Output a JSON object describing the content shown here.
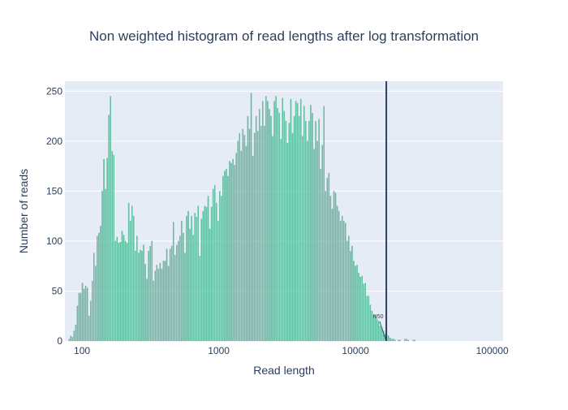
{
  "chart_data": {
    "type": "bar",
    "title": "Non weighted histogram of read lengths after log transformation",
    "xlabel": "Read length",
    "ylabel": "Number of reads",
    "x_scale": "log",
    "xlim": [
      75,
      120000
    ],
    "ylim": [
      0,
      260
    ],
    "x_ticks": [
      {
        "value": 100,
        "label": "100"
      },
      {
        "value": 1000,
        "label": "1000"
      },
      {
        "value": 10000,
        "label": "10000"
      },
      {
        "value": 100000,
        "label": "100000"
      }
    ],
    "y_ticks": [
      {
        "value": 0,
        "label": "0"
      },
      {
        "value": 50,
        "label": "50"
      },
      {
        "value": 100,
        "label": "100"
      },
      {
        "value": 150,
        "label": "150"
      },
      {
        "value": 200,
        "label": "200"
      },
      {
        "value": 250,
        "label": "250"
      }
    ],
    "grid": true,
    "bar_color": "#66c2a5",
    "vline": {
      "x": 16800,
      "color": "#2a3f5f"
    },
    "annotation": {
      "text": "N50",
      "x": 16800,
      "y": 0
    },
    "bins": {
      "log10_start": 1.9,
      "log10_width": 0.0121,
      "counts": [
        2,
        5,
        4,
        10,
        16,
        35,
        48,
        48,
        58,
        52,
        55,
        53,
        25,
        40,
        60,
        88,
        75,
        105,
        108,
        115,
        150,
        182,
        152,
        183,
        226,
        245,
        190,
        186,
        100,
        104,
        98,
        99,
        110,
        106,
        100,
        98,
        138,
        120,
        135,
        125,
        90,
        105,
        88,
        91,
        90,
        96,
        77,
        62,
        90,
        95,
        100,
        60,
        70,
        76,
        72,
        78,
        72,
        80,
        80,
        92,
        75,
        92,
        95,
        119,
        86,
        96,
        100,
        105,
        120,
        108,
        88,
        125,
        130,
        112,
        125,
        106,
        128,
        124,
        135,
        85,
        122,
        130,
        135,
        134,
        145,
        112,
        134,
        152,
        156,
        138,
        120,
        150,
        145,
        165,
        170,
        172,
        165,
        180,
        178,
        182,
        176,
        188,
        200,
        208,
        190,
        212,
        206,
        195,
        225,
        212,
        248,
        185,
        208,
        225,
        210,
        232,
        215,
        240,
        215,
        245,
        240,
        232,
        225,
        205,
        240,
        245,
        233,
        228,
        202,
        243,
        230,
        220,
        198,
        218,
        242,
        208,
        225,
        240,
        238,
        225,
        242,
        205,
        235,
        220,
        200,
        220,
        236,
        228,
        192,
        220,
        200,
        222,
        172,
        196,
        235,
        150,
        163,
        168,
        145,
        132,
        150,
        148,
        135,
        130,
        120,
        125,
        120,
        118,
        100,
        105,
        90,
        95,
        80,
        75,
        76,
        68,
        64,
        65,
        57,
        58,
        45,
        45,
        36,
        30,
        26,
        26,
        22,
        20,
        15,
        13,
        10,
        7,
        6,
        5,
        3,
        2,
        2,
        1,
        0,
        1,
        1,
        0,
        0,
        2,
        2,
        1,
        0,
        0,
        1,
        1
      ]
    }
  }
}
